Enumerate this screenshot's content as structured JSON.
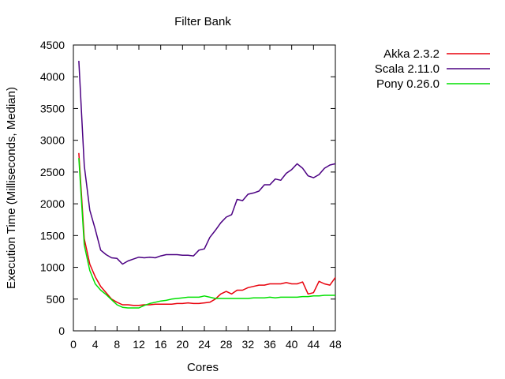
{
  "chart_data": {
    "type": "line",
    "title": "Filter Bank",
    "xlabel": "Cores",
    "ylabel": "Execution Time (Milliseconds, Median)",
    "xlim": [
      0,
      48
    ],
    "ylim": [
      0,
      4500
    ],
    "xticks": [
      0,
      4,
      8,
      12,
      16,
      20,
      24,
      28,
      32,
      36,
      40,
      44,
      48
    ],
    "yticks": [
      0,
      500,
      1000,
      1500,
      2000,
      2500,
      3000,
      3500,
      4000,
      4500
    ],
    "grid": false,
    "legend_position": "outside-top-right",
    "series": [
      {
        "name": "Akka 2.3.2",
        "color": "#e8000b",
        "x": [
          1,
          2,
          3,
          4,
          5,
          6,
          7,
          8,
          9,
          10,
          11,
          12,
          13,
          14,
          15,
          16,
          17,
          18,
          19,
          20,
          21,
          22,
          23,
          24,
          25,
          26,
          27,
          28,
          29,
          30,
          31,
          32,
          33,
          34,
          35,
          36,
          37,
          38,
          39,
          40,
          41,
          42,
          43,
          44,
          45,
          46,
          47,
          48
        ],
        "y": [
          2800,
          1450,
          1050,
          850,
          700,
          600,
          500,
          450,
          410,
          410,
          400,
          400,
          410,
          410,
          420,
          420,
          420,
          420,
          430,
          430,
          440,
          430,
          430,
          440,
          450,
          500,
          580,
          620,
          580,
          640,
          640,
          680,
          700,
          720,
          720,
          740,
          740,
          740,
          760,
          740,
          740,
          770,
          580,
          600,
          780,
          740,
          720,
          840
        ]
      },
      {
        "name": "Scala 2.11.0",
        "color": "#4b0082",
        "x": [
          1,
          2,
          3,
          4,
          5,
          6,
          7,
          8,
          9,
          10,
          11,
          12,
          13,
          14,
          15,
          16,
          17,
          18,
          19,
          20,
          21,
          22,
          23,
          24,
          25,
          26,
          27,
          28,
          29,
          30,
          31,
          32,
          33,
          34,
          35,
          36,
          37,
          38,
          39,
          40,
          41,
          42,
          43,
          44,
          45,
          46,
          47,
          48
        ],
        "y": [
          4250,
          2600,
          1900,
          1600,
          1270,
          1200,
          1150,
          1140,
          1050,
          1100,
          1130,
          1160,
          1150,
          1160,
          1150,
          1180,
          1200,
          1200,
          1200,
          1190,
          1190,
          1180,
          1270,
          1290,
          1470,
          1580,
          1700,
          1790,
          1830,
          2070,
          2050,
          2150,
          2170,
          2200,
          2300,
          2300,
          2390,
          2370,
          2480,
          2540,
          2630,
          2560,
          2440,
          2410,
          2460,
          2560,
          2610,
          2630
        ]
      },
      {
        "name": "Pony 0.26.0",
        "color": "#00e000",
        "x": [
          1,
          2,
          3,
          4,
          5,
          6,
          7,
          8,
          9,
          10,
          11,
          12,
          13,
          14,
          15,
          16,
          17,
          18,
          19,
          20,
          21,
          22,
          23,
          24,
          25,
          26,
          27,
          28,
          29,
          30,
          31,
          32,
          33,
          34,
          35,
          36,
          37,
          38,
          39,
          40,
          41,
          42,
          43,
          44,
          45,
          46,
          47,
          48
        ],
        "y": [
          2720,
          1350,
          950,
          740,
          640,
          570,
          490,
          410,
          370,
          360,
          360,
          360,
          400,
          430,
          450,
          470,
          480,
          500,
          510,
          520,
          530,
          530,
          530,
          550,
          530,
          510,
          510,
          510,
          510,
          510,
          510,
          510,
          520,
          520,
          520,
          530,
          520,
          530,
          530,
          530,
          530,
          540,
          540,
          550,
          550,
          560,
          560,
          560
        ]
      }
    ]
  }
}
